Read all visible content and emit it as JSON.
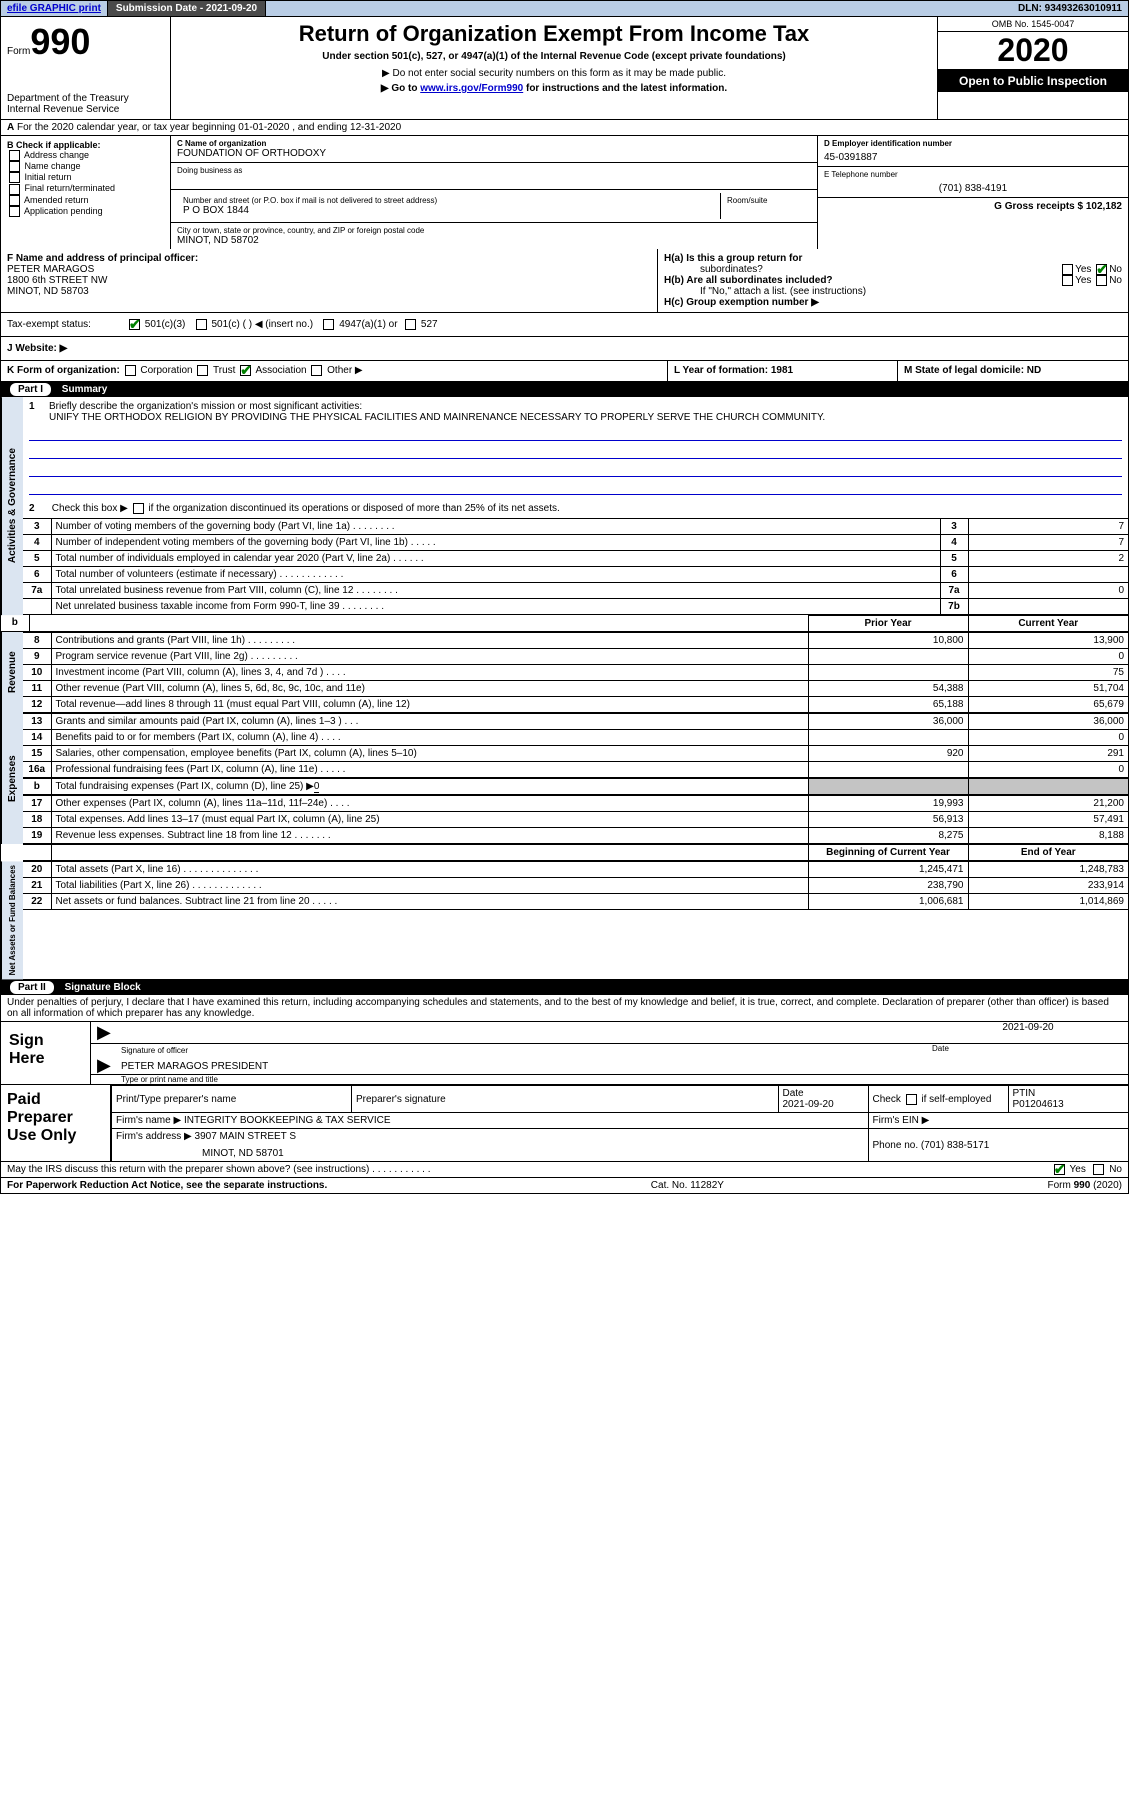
{
  "topbar": {
    "efile_label": "efile GRAPHIC print",
    "submission_label": "Submission Date - 2021-09-20",
    "dln_label": "DLN: 93493263010911"
  },
  "header": {
    "form_label": "Form",
    "form_number": "990",
    "title": "Return of Organization Exempt From Income Tax",
    "subtitle": "Under section 501(c), 527, or 4947(a)(1) of the Internal Revenue Code (except private foundations)",
    "warning": "▶ Do not enter social security numbers on this form as it may be made public.",
    "goto_prefix": "▶ Go to ",
    "goto_link": "www.irs.gov/Form990",
    "goto_suffix": " for instructions and the latest information.",
    "dept": "Department of the Treasury",
    "irs": "Internal Revenue Service",
    "omb": "OMB No. 1545-0047",
    "year": "2020",
    "public": "Open to Public Inspection"
  },
  "row_a": {
    "text": "For the 2020 calendar year, or tax year beginning 01-01-2020    , and ending 12-31-2020",
    "prefix": "A"
  },
  "col_b": {
    "heading": "B Check if applicable:",
    "items": [
      "Address change",
      "Name change",
      "Initial return",
      "Final return/terminated",
      "Amended return",
      "Application pending"
    ]
  },
  "col_c": {
    "name_label": "C Name of organization",
    "name_value": "FOUNDATION OF ORTHODOXY",
    "dba_label": "Doing business as",
    "street_label": "Number and street (or P.O. box if mail is not delivered to street address)",
    "room_label": "Room/suite",
    "street_value": "P O BOX 1844",
    "city_label": "City or town, state or province, country, and ZIP or foreign postal code",
    "city_value": "MINOT, ND  58702"
  },
  "col_de": {
    "d_label": "D Employer identification number",
    "d_value": "45-0391887",
    "e_label": "E Telephone number",
    "e_value": "(701) 838-4191",
    "g_label": "G Gross receipts $ 102,182"
  },
  "row_f": {
    "f_label": "F  Name and address of principal officer:",
    "f_name": "PETER MARAGOS",
    "f_street": "1800 6th STREET NW",
    "f_city": "MINOT, ND  58703",
    "ha_label": "H(a)  Is this a group return for",
    "ha_sub": "subordinates?",
    "hb_label": "H(b)  Are all subordinates included?",
    "hb_note": "If \"No,\" attach a list. (see instructions)",
    "hc_label": "H(c)  Group exemption number ▶",
    "yes": "Yes",
    "no": "No"
  },
  "row_i": {
    "label": "Tax-exempt status:",
    "i501c3": "501(c)(3)",
    "i501c": "501(c) (  ) ◀ (insert no.)",
    "i4947": "4947(a)(1) or",
    "i527": "527"
  },
  "row_j": {
    "label": "J    Website: ▶"
  },
  "row_k": {
    "k_label": "K Form of organization:",
    "corp": "Corporation",
    "trust": "Trust",
    "assoc": "Association",
    "other": "Other ▶",
    "l_label": "L Year of formation: 1981",
    "m_label": "M State of legal domicile: ND"
  },
  "part1": {
    "header_num": "Part I",
    "header_title": "Summary",
    "line1_label": "Briefly describe the organization's mission or most significant activities:",
    "mission": "UNIFY THE ORTHODOX RELIGION BY PROVIDING THE PHYSICAL FACILITIES AND MAINRENANCE NECESSARY TO PROPERLY SERVE THE CHURCH COMMUNITY.",
    "line2_label": "Check this box ▶       if the organization discontinued its operations or disposed of more than 25% of its net assets.",
    "governance_lines": [
      {
        "n": "3",
        "label": "Number of voting members of the governing body (Part VI, line 1a)   .    .    .    .    .    .    .    .",
        "box": "3",
        "val": "7"
      },
      {
        "n": "4",
        "label": "Number of independent voting members of the governing body (Part VI, line 1b)   .    .    .    .    .",
        "box": "4",
        "val": "7"
      },
      {
        "n": "5",
        "label": "Total number of individuals employed in calendar year 2020 (Part V, line 2a)   .    .    .    .    .    .",
        "box": "5",
        "val": "2"
      },
      {
        "n": "6",
        "label": "Total number of volunteers (estimate if necessary)    .    .    .    .    .    .    .    .    .    .    .    .",
        "box": "6",
        "val": ""
      },
      {
        "n": "7a",
        "label": "Total unrelated business revenue from Part VIII, column (C), line 12   .    .    .    .    .    .    .    .",
        "box": "7a",
        "val": "0"
      },
      {
        "n": "",
        "label": "Net unrelated business taxable income from Form 990-T, line 39    .    .    .    .    .    .    .    .",
        "box": "7b",
        "val": ""
      }
    ],
    "py_header": "Prior Year",
    "cy_header": "Current Year",
    "revenue_lines": [
      {
        "n": "8",
        "label": "Contributions and grants (Part VIII, line 1h)    .    .    .    .    .    .    .    .    .",
        "py": "10,800",
        "cy": "13,900"
      },
      {
        "n": "9",
        "label": "Program service revenue (Part VIII, line 2g)    .    .    .    .    .    .    .    .    .",
        "py": "",
        "cy": "0"
      },
      {
        "n": "10",
        "label": "Investment income (Part VIII, column (A), lines 3, 4, and 7d )   .    .    .    .",
        "py": "",
        "cy": "75"
      },
      {
        "n": "11",
        "label": "Other revenue (Part VIII, column (A), lines 5, 6d, 8c, 9c, 10c, and 11e)",
        "py": "54,388",
        "cy": "51,704"
      },
      {
        "n": "12",
        "label": "Total revenue—add lines 8 through 11 (must equal Part VIII, column (A), line 12)",
        "py": "65,188",
        "cy": "65,679"
      }
    ],
    "expense_lines": [
      {
        "n": "13",
        "label": "Grants and similar amounts paid (Part IX, column (A), lines 1–3 )   .    .    .",
        "py": "36,000",
        "cy": "36,000"
      },
      {
        "n": "14",
        "label": "Benefits paid to or for members (Part IX, column (A), line 4)    .    .    .    .",
        "py": "",
        "cy": "0"
      },
      {
        "n": "15",
        "label": "Salaries, other compensation, employee benefits (Part IX, column (A), lines 5–10)",
        "py": "920",
        "cy": "291"
      },
      {
        "n": "16a",
        "label": "Professional fundraising fees (Part IX, column (A), line 11e)    .    .    .    .    .",
        "py": "",
        "cy": "0"
      }
    ],
    "line_b_label": "Total fundraising expenses (Part IX, column (D), line 25) ▶",
    "line_b_val": "0",
    "expense_lines2": [
      {
        "n": "17",
        "label": "Other expenses (Part IX, column (A), lines 11a–11d, 11f–24e)   .    .    .    .",
        "py": "19,993",
        "cy": "21,200"
      },
      {
        "n": "18",
        "label": "Total expenses. Add lines 13–17 (must equal Part IX, column (A), line 25)",
        "py": "56,913",
        "cy": "57,491"
      },
      {
        "n": "19",
        "label": "Revenue less expenses. Subtract line 18 from line 12   .    .    .    .    .    .    .",
        "py": "8,275",
        "cy": "8,188"
      }
    ],
    "bcy_header": "Beginning of Current Year",
    "eoy_header": "End of Year",
    "net_lines": [
      {
        "n": "20",
        "label": "Total assets (Part X, line 16)   .    .    .    .    .    .    .    .    .    .    .    .    .    .",
        "py": "1,245,471",
        "cy": "1,248,783"
      },
      {
        "n": "21",
        "label": "Total liabilities (Part X, line 26)   .    .    .    .    .    .    .    .    .    .    .    .    .",
        "py": "238,790",
        "cy": "233,914"
      },
      {
        "n": "22",
        "label": "Net assets or fund balances. Subtract line 21 from line 20   .    .    .    .    .",
        "py": "1,006,681",
        "cy": "1,014,869"
      }
    ],
    "vtabs": {
      "gov": "Activities & Governance",
      "rev": "Revenue",
      "exp": "Expenses",
      "net": "Net Assets or Fund Balances"
    }
  },
  "part2": {
    "header_num": "Part II",
    "header_title": "Signature Block",
    "declaration": "Under penalties of perjury, I declare that I have examined this return, including accompanying schedules and statements, and to the best of my knowledge and belief, it is true, correct, and complete. Declaration of preparer (other than officer) is based on all information of which preparer has any knowledge.",
    "sign_here": "Sign Here",
    "sig_officer_label": "Signature of officer",
    "sig_date": "2021-09-20",
    "sig_date_label": "Date",
    "officer_name": "PETER MARAGOS PRESIDENT",
    "officer_name_label": "Type or print name and title",
    "paid_label": "Paid Preparer Use Only",
    "prep_name_label": "Print/Type preparer's name",
    "prep_sig_label": "Preparer's signature",
    "prep_date_label": "Date",
    "prep_date": "2021-09-20",
    "check_self_label": "Check        if self-employed",
    "ptin_label": "PTIN",
    "ptin_value": "P01204613",
    "firm_name_label": "Firm's name     ▶",
    "firm_name": "INTEGRITY BOOKKEEPING & TAX SERVICE",
    "firm_ein_label": "Firm's EIN ▶",
    "firm_addr_label": "Firm's address ▶",
    "firm_addr1": "3907 MAIN STREET S",
    "firm_addr2": "MINOT, ND  58701",
    "firm_phone_label": "Phone no. (701) 838-5171",
    "may_irs": "May the IRS discuss this return with the preparer shown above? (see instructions)    .    .    .    .    .    .    .    .    .    .    .",
    "yes": "Yes",
    "no": "No"
  },
  "footer": {
    "left": "For Paperwork Reduction Act Notice, see the separate instructions.",
    "mid": "Cat. No. 11282Y",
    "right": "Form 990 (2020)"
  },
  "colors": {
    "topbar_bg": "#b9cde5",
    "black": "#000000",
    "link": "#0000cc",
    "vtab_bg": "#dbe5f1",
    "gray": "#c4c4c4",
    "check_green": "#008000"
  }
}
